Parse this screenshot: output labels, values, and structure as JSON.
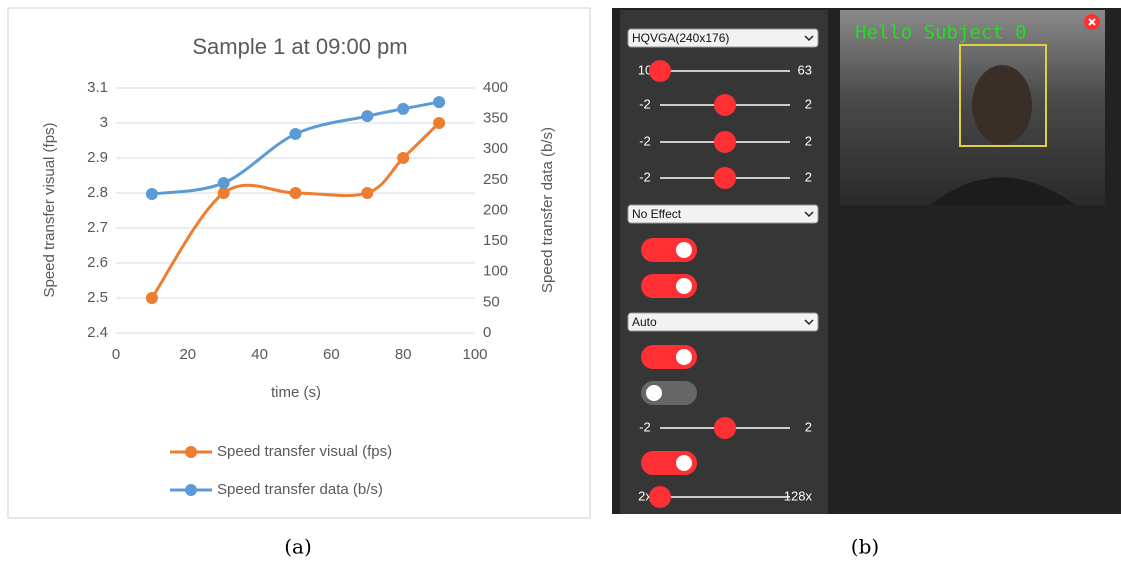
{
  "chart_data": {
    "type": "line",
    "title": "Sample 1 at 09:00 pm",
    "x": [
      10,
      30,
      50,
      70,
      80,
      90
    ],
    "series": [
      {
        "name": "Speed transfer visual (fps)",
        "color": "#ed7d31",
        "values": [
          2.5,
          2.8,
          2.8,
          2.8,
          2.9,
          3.0
        ]
      },
      {
        "name": "Speed transfer data (b/s)",
        "color": "#5b9bd5",
        "axis": "y2",
        "values": [
          227,
          245,
          325,
          354,
          366,
          377
        ]
      }
    ],
    "xlabel": "time (s)",
    "ylabel": "Speed transfer visual (fps)",
    "y2label": "Speed transfer data (b/s)",
    "xlim": [
      0,
      100
    ],
    "xticks": [
      0,
      20,
      40,
      60,
      80,
      100
    ],
    "ylim": [
      2.4,
      3.1
    ],
    "yticks": [
      2.4,
      2.5,
      2.6,
      2.7,
      2.8,
      2.9,
      3,
      3.1
    ],
    "y2lim": [
      0,
      400
    ],
    "y2ticks": [
      0,
      50,
      100,
      150,
      200,
      250,
      300,
      350,
      400
    ],
    "grid": true,
    "smooth": true,
    "legend": "bottom"
  },
  "captions": [
    "(a)",
    "(b)"
  ],
  "ui": {
    "controls": [
      {
        "kind": "select",
        "label": "HQVGA(240x176)"
      },
      {
        "kind": "slider",
        "min": 10,
        "max": 63,
        "value": 10
      },
      {
        "kind": "slider",
        "min": -2,
        "max": 2,
        "value": 0
      },
      {
        "kind": "slider",
        "min": -2,
        "max": 2,
        "value": 0
      },
      {
        "kind": "slider",
        "min": -2,
        "max": 2,
        "value": 0
      },
      {
        "kind": "select",
        "label": "No Effect"
      },
      {
        "kind": "toggle",
        "on": true
      },
      {
        "kind": "toggle",
        "on": true
      },
      {
        "kind": "select",
        "label": "Auto"
      },
      {
        "kind": "toggle",
        "on": true
      },
      {
        "kind": "toggle",
        "on": false
      },
      {
        "kind": "slider",
        "min": -2,
        "max": 2,
        "value": 0
      },
      {
        "kind": "toggle",
        "on": true
      },
      {
        "kind": "slider",
        "min": {
          "value": 2,
          "label": "2x"
        },
        "max": {
          "value": 128,
          "label": "128x"
        },
        "value": 2
      }
    ],
    "overlay_text": "Hello Subject 0"
  }
}
